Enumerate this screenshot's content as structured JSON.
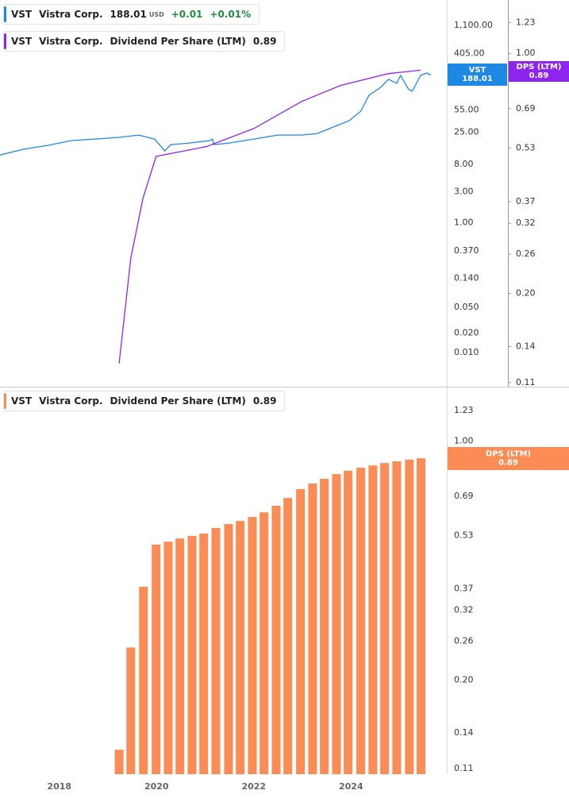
{
  "chart_data": [
    {
      "type": "line",
      "log_scale": true,
      "xlim": [
        2016.78,
        2025.97
      ],
      "ylim": [
        0.003,
        2700
      ],
      "yticks": [
        {
          "value": 1100,
          "label": "1,100.00"
        },
        {
          "value": 405,
          "label": "405.00"
        },
        {
          "value": 55,
          "label": "55.00"
        },
        {
          "value": 25,
          "label": "25.00"
        },
        {
          "value": 8,
          "label": "8.00"
        },
        {
          "value": 3,
          "label": "3.00"
        },
        {
          "value": 1,
          "label": "1.00"
        },
        {
          "value": 0.37,
          "label": "0.370"
        },
        {
          "value": 0.14,
          "label": "0.140"
        },
        {
          "value": 0.05,
          "label": "0.050"
        },
        {
          "value": 0.02,
          "label": "0.020"
        },
        {
          "value": 0.01,
          "label": "0.010"
        }
      ],
      "y2lim": [
        0.107,
        1.43
      ],
      "y2ticks": [
        1.23,
        {
          "value": 1,
          "label": "1.00"
        },
        0.69,
        0.53,
        0.37,
        0.32,
        0.26,
        {
          "value": 0.2,
          "label": "0.20"
        },
        0.14,
        0.11
      ],
      "series": [
        {
          "name": "VST",
          "company": "Vistra Corp.",
          "color": "#1e88e5",
          "last_value": 188.01,
          "currency": "USD",
          "change": "+0.01",
          "change_pct": "+0.01%",
          "x": [
            2016.78,
            2017.27,
            2017.76,
            2018.25,
            2018.74,
            2019.23,
            2019.63,
            2019.96,
            2020.17,
            2020.29,
            2020.7,
            2021.1,
            2021.15,
            2021.18,
            2021.51,
            2022.0,
            2022.49,
            2022.98,
            2023.31,
            2023.63,
            2023.96,
            2024.2,
            2024.37,
            2024.61,
            2024.77,
            2024.94,
            2025.02,
            2025.18,
            2025.26,
            2025.43,
            2025.56,
            2025.64
          ],
          "values": [
            11.1,
            13.6,
            15.6,
            18.5,
            19.5,
            20.7,
            22.5,
            19.5,
            12.8,
            16.0,
            17.0,
            18.5,
            19.5,
            16.0,
            17.0,
            19.5,
            22.5,
            22.5,
            23.8,
            29.8,
            37.3,
            52.4,
            92,
            122,
            162,
            141,
            186,
            115,
            106,
            186,
            203,
            188
          ]
        },
        {
          "name": "Dividend Per Share (LTM)",
          "short_name": "DPS (LTM)",
          "ticker": "VST",
          "company": "Vistra Corp.",
          "axis": "y2",
          "color": "#8e24f0",
          "last_value": 0.89,
          "x": [
            2019.23,
            2019.47,
            2019.72,
            2019.99,
            2021.02,
            2022.0,
            2022.98,
            2023.79,
            2024.77,
            2025.43
          ],
          "values": [
            0.125,
            0.253,
            0.378,
            0.501,
            0.535,
            0.604,
            0.724,
            0.807,
            0.873,
            0.893
          ]
        }
      ]
    },
    {
      "type": "bar",
      "log_scale": true,
      "xlim": [
        2016.78,
        2025.97
      ],
      "xticks": [
        2018,
        2020,
        2022,
        2024
      ],
      "ylim": [
        0.106,
        1.436
      ],
      "yticks": [
        1.23,
        {
          "value": 1,
          "label": "1.00"
        },
        0.69,
        0.53,
        0.37,
        0.32,
        0.26,
        {
          "value": 0.2,
          "label": "0.20"
        },
        0.14,
        0.11
      ],
      "series": [
        {
          "name": "Dividend Per Share (LTM)",
          "short_name": "DPS (LTM)",
          "ticker": "VST",
          "company": "Vistra Corp.",
          "color": "#fb8c55",
          "last_value": 0.89,
          "x": [
            2019.23,
            2019.47,
            2019.73,
            2019.99,
            2020.24,
            2020.48,
            2020.73,
            2020.97,
            2021.22,
            2021.48,
            2021.72,
            2021.97,
            2022.21,
            2022.46,
            2022.7,
            2022.96,
            2023.21,
            2023.45,
            2023.7,
            2023.94,
            2024.2,
            2024.45,
            2024.69,
            2024.94,
            2025.2,
            2025.44
          ],
          "values": [
            0.125,
            0.249,
            0.375,
            0.498,
            0.508,
            0.519,
            0.528,
            0.537,
            0.557,
            0.572,
            0.584,
            0.6,
            0.619,
            0.647,
            0.682,
            0.724,
            0.752,
            0.776,
            0.801,
            0.819,
            0.836,
            0.849,
            0.863,
            0.873,
            0.883,
            0.891
          ]
        }
      ]
    }
  ]
}
